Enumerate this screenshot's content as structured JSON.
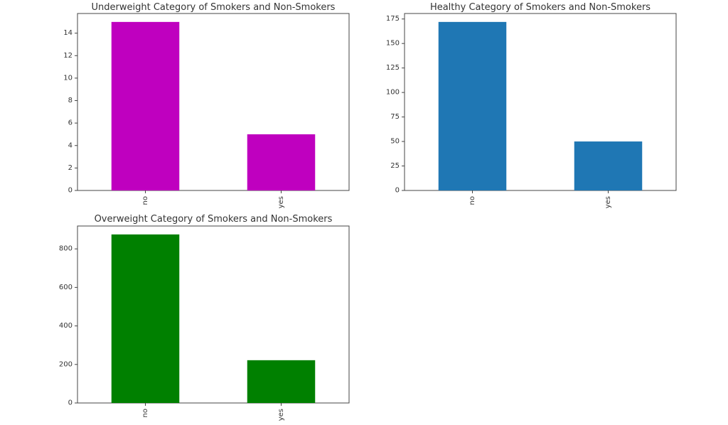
{
  "chart_data": [
    {
      "type": "bar",
      "title": "Underweight Category of Smokers and Non-Smokers",
      "categories": [
        "no",
        "yes"
      ],
      "values": [
        15,
        5
      ],
      "color": "#bf00bf",
      "ylim": [
        0,
        15.75
      ],
      "yticks": [
        0,
        2,
        4,
        6,
        8,
        10,
        12,
        14
      ],
      "grid": false
    },
    {
      "type": "bar",
      "title": "Healthy Category of Smokers and Non-Smokers",
      "categories": [
        "no",
        "yes"
      ],
      "values": [
        172,
        50
      ],
      "color": "#1f77b4",
      "ylim": [
        0,
        180.6
      ],
      "yticks": [
        0,
        25,
        50,
        75,
        100,
        125,
        150,
        175
      ],
      "grid": false
    },
    {
      "type": "bar",
      "title": "Overweight Category of Smokers and Non-Smokers",
      "categories": [
        "no",
        "yes"
      ],
      "values": [
        875,
        222
      ],
      "color": "#008000",
      "ylim": [
        0,
        918.75
      ],
      "yticks": [
        0,
        200,
        400,
        600,
        800
      ],
      "grid": false
    }
  ]
}
